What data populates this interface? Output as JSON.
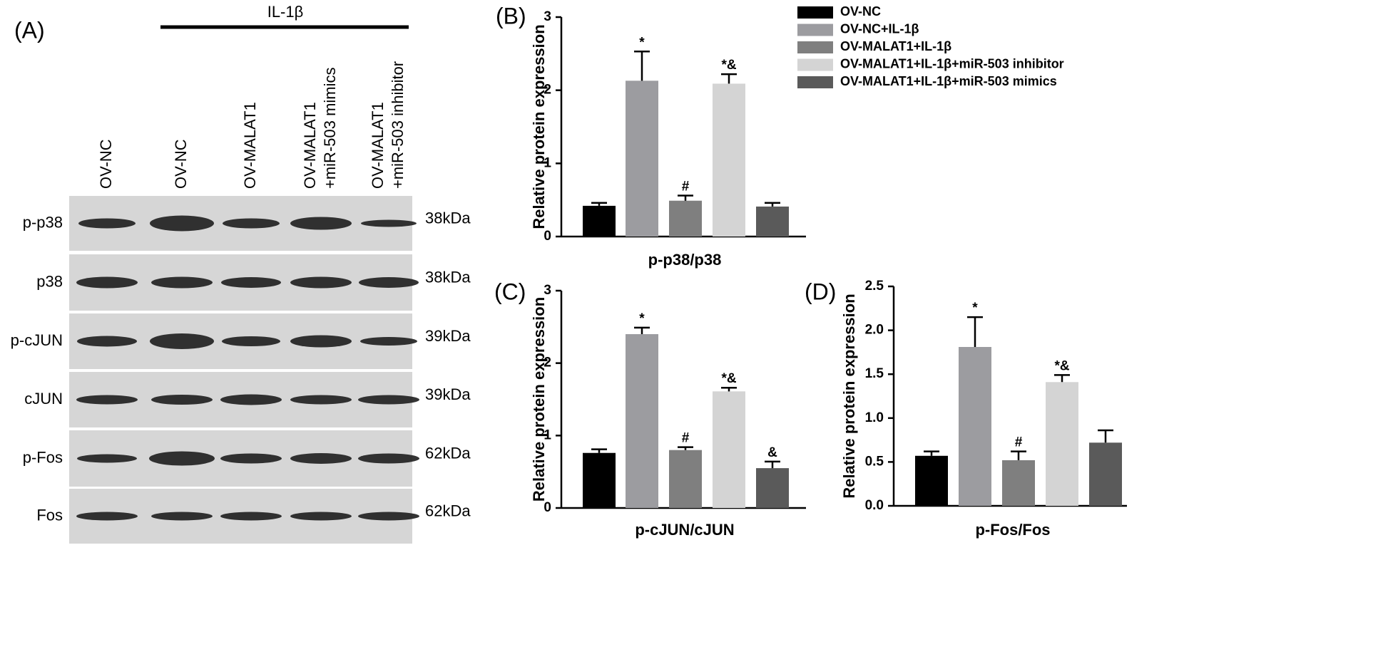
{
  "blot": {
    "label": "(A)",
    "treatment": "IL-1β",
    "lanes": [
      [
        "OV-NC"
      ],
      [
        "OV-NC"
      ],
      [
        "OV-MALAT1"
      ],
      [
        "OV-MALAT1",
        "+miR-503 mimics"
      ],
      [
        "OV-MALAT1",
        "+miR-503 inhibitor"
      ]
    ],
    "rows": [
      {
        "protein": "p-p38",
        "size": "38kDa"
      },
      {
        "protein": "p38",
        "size": "38kDa"
      },
      {
        "protein": "p-cJUN",
        "size": "39kDa"
      },
      {
        "protein": "cJUN",
        "size": "39kDa"
      },
      {
        "protein": "p-Fos",
        "size": "62kDa"
      },
      {
        "protein": "Fos",
        "size": "62kDa"
      }
    ]
  },
  "legend": [
    {
      "name": "OV-NC",
      "color": "#000000"
    },
    {
      "name": "OV-NC+IL-1β",
      "color": "#9c9ca0"
    },
    {
      "name": "OV-MALAT1+IL-1β",
      "color": "#7f7f7f"
    },
    {
      "name": "OV-MALAT1+IL-1β+miR-503 inhibitor",
      "color": "#d4d4d4"
    },
    {
      "name": "OV-MALAT1+IL-1β+miR-503 mimics",
      "color": "#5a5a5a"
    }
  ],
  "chart_data": [
    {
      "type": "bar",
      "label": "(B)",
      "xlabel": "p-p38/p38",
      "ylabel": "Relative protein expression",
      "values": [
        0.42,
        2.13,
        0.49,
        2.09,
        0.41
      ],
      "errors": [
        0.04,
        0.4,
        0.07,
        0.13,
        0.05
      ],
      "annotations": [
        null,
        "*",
        "#",
        "*&",
        null
      ],
      "ylim": [
        0,
        3
      ],
      "yticks": [
        0,
        1,
        2,
        3
      ]
    },
    {
      "type": "bar",
      "label": "(C)",
      "xlabel": "p-cJUN/cJUN",
      "ylabel": "Relative protein expression",
      "values": [
        0.76,
        2.4,
        0.8,
        1.61,
        0.55
      ],
      "errors": [
        0.05,
        0.09,
        0.04,
        0.05,
        0.09
      ],
      "annotations": [
        null,
        "*",
        "#",
        "*&",
        "&"
      ],
      "ylim": [
        0,
        3
      ],
      "yticks": [
        0,
        1,
        2,
        3
      ]
    },
    {
      "type": "bar",
      "label": "(D)",
      "xlabel": "p-Fos/Fos",
      "ylabel": "Relative protein expression",
      "values": [
        0.57,
        1.81,
        0.52,
        1.41,
        0.72
      ],
      "errors": [
        0.05,
        0.34,
        0.1,
        0.08,
        0.14
      ],
      "annotations": [
        null,
        "*",
        "#",
        "*&",
        null
      ],
      "ylim": [
        0,
        2.5
      ],
      "yticks": [
        {
          "value": 0,
          "label": "0.0"
        },
        0.5,
        {
          "value": 1,
          "label": "1.0"
        },
        1.5,
        {
          "value": 2,
          "label": "2.0"
        },
        2.5
      ]
    }
  ]
}
